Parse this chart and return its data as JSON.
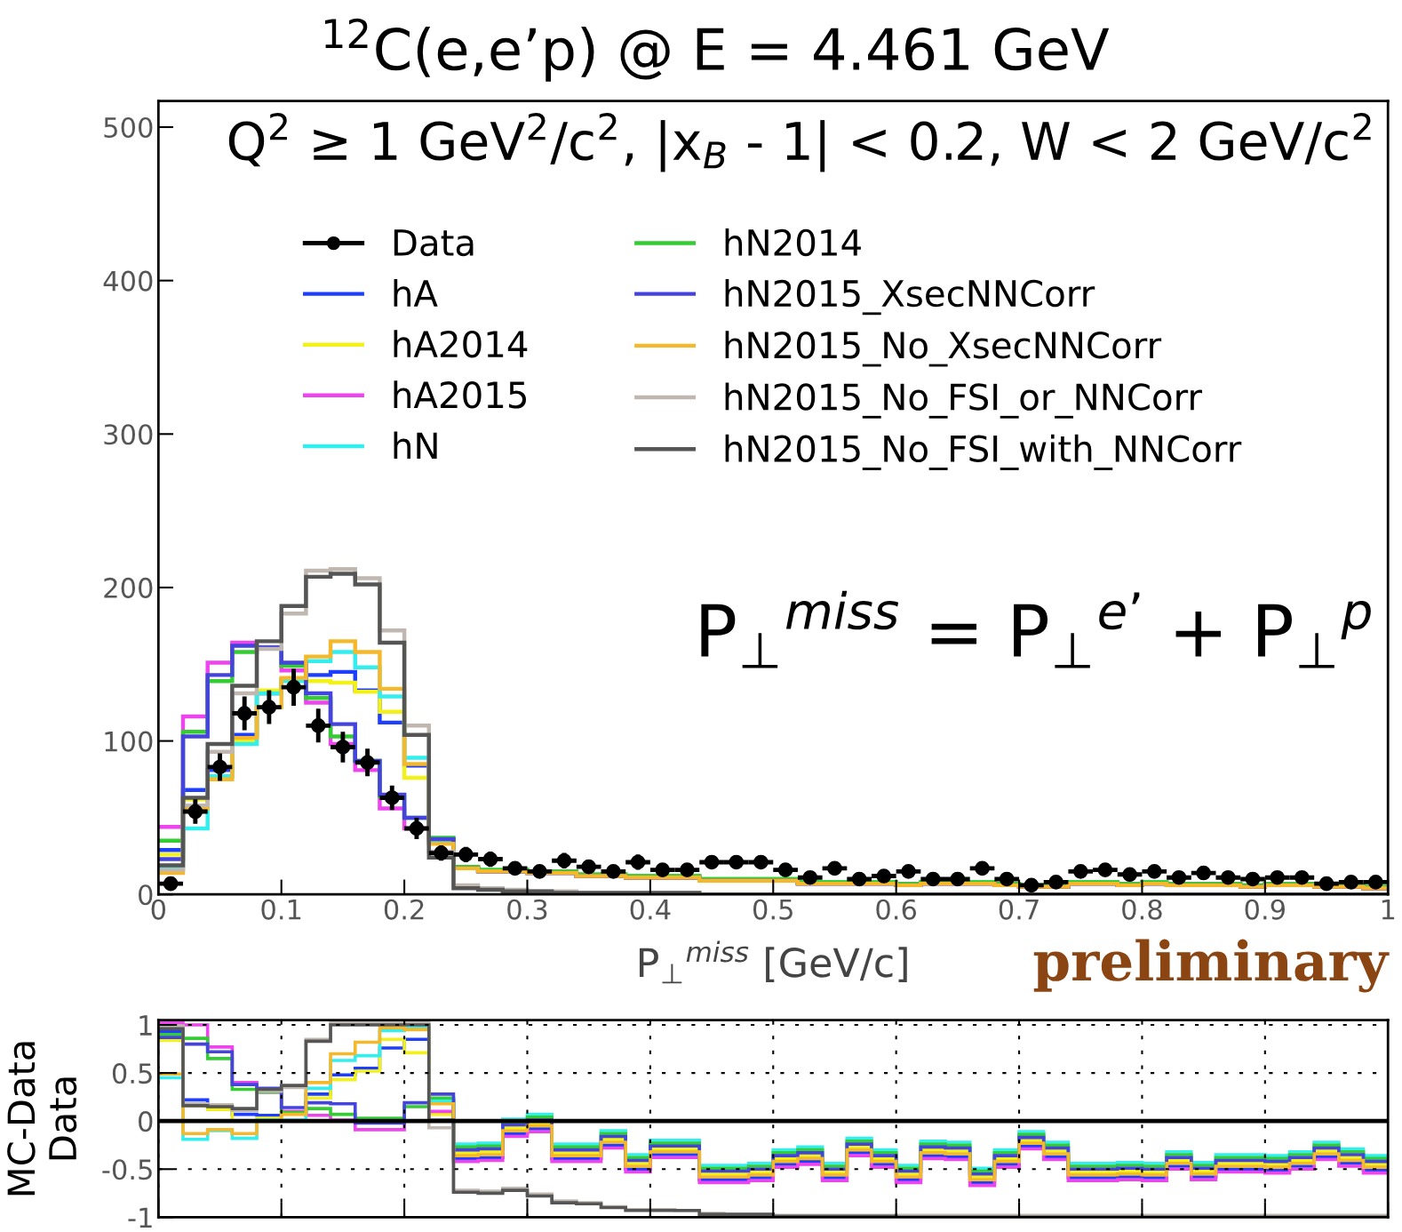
{
  "chart_data": [
    {
      "type": "histogram",
      "title": "$^{12}$C(e,e’p) @ E = 4.461 GeV",
      "subtitle": "Q$^{2}$ ≥ 1 GeV$^{2}$/c$^{2}$, |x$_{B}$ - 1| < 0.2, W < 2 GeV/c$^{2}$",
      "xlabel": "P$_{⊥}$$^{miss}$ [GeV/c]",
      "annotations": [
        "P$_{⊥}$$^{miss}$ = P$_{⊥}$$^{e’}$ + P$_{⊥}$$^{p}$",
        "preliminary"
      ],
      "bins": [
        0,
        0.02,
        0.04,
        0.06,
        0.08,
        0.1,
        0.12,
        0.14,
        0.16,
        0.18,
        0.2,
        0.22,
        0.24,
        0.26,
        0.28,
        0.3,
        0.32,
        0.34,
        0.36,
        0.38,
        0.4,
        0.42,
        0.44,
        0.46,
        0.48,
        0.5,
        0.52,
        0.54,
        0.56,
        0.58,
        0.6,
        0.62,
        0.64,
        0.66,
        0.68,
        0.7,
        0.72,
        0.74,
        0.76,
        0.78,
        0.8,
        0.82,
        0.84,
        0.86,
        0.88,
        0.9,
        0.92,
        0.94,
        0.96,
        0.98,
        1
      ],
      "xlim": [
        0,
        1
      ],
      "xticks": [
        0,
        0.1,
        0.2,
        0.3,
        0.4,
        0.5,
        0.6,
        0.7,
        0.8,
        0.9,
        1
      ],
      "ylim": [
        0,
        517
      ],
      "yticks": [
        0,
        100,
        200,
        300,
        400,
        500
      ],
      "legend": "top",
      "series": [
        {
          "name": "Data",
          "type": "scatter",
          "color": "#000000",
          "marker": "circle",
          "x": [
            0.01,
            0.03,
            0.05,
            0.07,
            0.09,
            0.11,
            0.13,
            0.15,
            0.17,
            0.19,
            0.21,
            0.23,
            0.25,
            0.27,
            0.29,
            0.31,
            0.33,
            0.35,
            0.37,
            0.39,
            0.41,
            0.43,
            0.45,
            0.47,
            0.49,
            0.51,
            0.53,
            0.55,
            0.57,
            0.59,
            0.61,
            0.63,
            0.65,
            0.67,
            0.69,
            0.71,
            0.73,
            0.75,
            0.77,
            0.79,
            0.81,
            0.83,
            0.85,
            0.87,
            0.89,
            0.91,
            0.93,
            0.95,
            0.97,
            0.99
          ],
          "values": [
            7,
            54,
            83,
            118,
            122,
            135,
            110,
            96,
            86,
            63,
            43,
            27,
            26,
            23,
            17,
            15,
            22,
            18,
            15,
            21,
            16,
            16,
            21,
            21,
            21,
            16,
            11,
            17,
            10,
            12,
            15,
            10,
            10,
            17,
            10,
            6,
            8,
            15,
            16,
            13,
            15,
            11,
            14,
            11,
            10,
            11,
            11,
            7,
            8,
            8
          ],
          "errors": [
            3,
            8,
            9,
            11,
            11,
            12,
            11,
            10,
            9,
            8,
            7,
            5,
            5,
            5,
            4,
            4,
            5,
            4,
            4,
            5,
            4,
            4,
            4,
            4,
            4,
            4,
            4,
            4,
            4,
            4,
            4,
            4,
            4,
            4,
            4,
            4,
            4,
            4,
            4,
            4,
            4,
            4,
            4,
            4,
            4,
            4,
            4,
            4,
            4,
            4
          ],
          "xerrors": [
            0.01,
            0.01,
            0.01,
            0.01,
            0.01,
            0.01,
            0.01,
            0.01,
            0.01,
            0.01,
            0.01,
            0.01,
            0.01,
            0.01,
            0.01,
            0.01,
            0.01,
            0.01,
            0.01,
            0.01,
            0.01,
            0.01,
            0.01,
            0.01,
            0.01,
            0.01,
            0.01,
            0.01,
            0.01,
            0.01,
            0.01,
            0.01,
            0.01,
            0.01,
            0.01,
            0.01,
            0.01,
            0.01,
            0.01,
            0.01,
            0.01,
            0.01,
            0.01,
            0.01,
            0.01,
            0.01,
            0.01,
            0.01,
            0.01,
            0.01
          ]
        },
        {
          "name": "hA",
          "color": "#1f3fff",
          "values": [
            29,
            68,
            81,
            104,
            131,
            140,
            143,
            145,
            133,
            112,
            84,
            34,
            17,
            15,
            15,
            14,
            14,
            12,
            12,
            11,
            11,
            11,
            9,
            9,
            9,
            9,
            7,
            7,
            7,
            7,
            6,
            7,
            7,
            7,
            6,
            5,
            5,
            7,
            7,
            6,
            7,
            6,
            6,
            6,
            5,
            6,
            6,
            5,
            5,
            4
          ]
        },
        {
          "name": "hA2014",
          "color": "#f2f21a",
          "values": [
            26,
            62,
            77,
            100,
            133,
            140,
            139,
            138,
            132,
            119,
            76,
            34,
            18,
            16,
            16,
            15,
            15,
            13,
            13,
            12,
            12,
            12,
            10,
            10,
            10,
            10,
            8,
            8,
            8,
            8,
            7,
            8,
            8,
            8,
            7,
            6,
            6,
            8,
            8,
            7,
            8,
            7,
            7,
            7,
            6,
            7,
            7,
            6,
            6,
            5
          ]
        },
        {
          "name": "hA2015",
          "color": "#ee44ee",
          "values": [
            44,
            116,
            151,
            164,
            161,
            146,
            125,
            98,
            81,
            56,
            43,
            35,
            17,
            15,
            15,
            14,
            14,
            12,
            12,
            11,
            11,
            11,
            9,
            9,
            9,
            9,
            7,
            7,
            7,
            7,
            6,
            7,
            7,
            7,
            6,
            5,
            5,
            7,
            7,
            6,
            7,
            6,
            6,
            6,
            5,
            6,
            6,
            5,
            5,
            4
          ]
        },
        {
          "name": "hN",
          "color": "#33eeee",
          "values": [
            17,
            43,
            77,
            98,
            131,
            139,
            152,
            158,
            148,
            129,
            89,
            35,
            18,
            16,
            16,
            15,
            15,
            13,
            13,
            12,
            12,
            12,
            10,
            10,
            10,
            10,
            8,
            8,
            8,
            8,
            7,
            8,
            8,
            8,
            7,
            6,
            6,
            8,
            8,
            7,
            8,
            7,
            7,
            7,
            6,
            7,
            7,
            6,
            6,
            5
          ]
        },
        {
          "name": "hN2014",
          "color": "#33cc33",
          "values": [
            35,
            106,
            139,
            158,
            161,
            149,
            128,
            103,
            87,
            64,
            50,
            37,
            18,
            16,
            16,
            15,
            15,
            13,
            13,
            12,
            12,
            12,
            10,
            10,
            10,
            10,
            8,
            8,
            8,
            8,
            7,
            8,
            8,
            8,
            7,
            6,
            6,
            8,
            8,
            7,
            8,
            7,
            7,
            7,
            6,
            7,
            7,
            6,
            6,
            5
          ]
        },
        {
          "name": "hN2015_XsecNNCorr",
          "color": "#4444dd",
          "values": [
            23,
            103,
            143,
            162,
            161,
            151,
            131,
            111,
            87,
            65,
            50,
            36,
            17,
            15,
            15,
            14,
            14,
            12,
            12,
            11,
            11,
            11,
            9,
            9,
            9,
            9,
            7,
            7,
            7,
            7,
            6,
            7,
            7,
            7,
            6,
            5,
            5,
            7,
            7,
            6,
            7,
            6,
            6,
            6,
            5,
            6,
            6,
            5,
            5,
            4
          ]
        },
        {
          "name": "hN2015_No_XsecNNCorr",
          "color": "#f5b82a",
          "values": [
            14,
            56,
            75,
            102,
            122,
            141,
            155,
            165,
            158,
            134,
            85,
            33,
            17,
            15,
            15,
            14,
            14,
            12,
            12,
            11,
            11,
            11,
            9,
            9,
            9,
            9,
            7,
            7,
            7,
            7,
            6,
            7,
            7,
            7,
            6,
            5,
            5,
            7,
            7,
            6,
            7,
            6,
            6,
            6,
            5,
            6,
            6,
            5,
            5,
            4
          ]
        },
        {
          "name": "hN2015_No_FSI_or_NNCorr",
          "color": "#c0b8b0",
          "values": [
            16,
            58,
            93,
            131,
            160,
            183,
            211,
            212,
            206,
            172,
            110,
            28,
            6,
            4,
            3,
            2,
            2,
            1,
            1,
            1,
            1,
            1,
            0,
            0,
            0,
            0,
            0,
            0,
            0,
            0,
            0,
            0,
            0,
            0,
            0,
            0,
            0,
            0,
            0,
            0,
            0,
            0,
            0,
            0,
            0,
            0,
            0,
            0,
            0,
            0
          ]
        },
        {
          "name": "hN2015_No_FSI_with_NNCorr",
          "color": "#555555",
          "values": [
            19,
            63,
            98,
            136,
            165,
            188,
            207,
            209,
            202,
            164,
            104,
            24,
            4,
            3,
            2,
            2,
            1,
            1,
            1,
            1,
            1,
            1,
            0,
            0,
            0,
            0,
            0,
            0,
            0,
            0,
            0,
            0,
            0,
            0,
            0,
            0,
            0,
            0,
            0,
            0,
            0,
            0,
            0,
            0,
            0,
            0,
            0,
            0,
            0,
            0
          ]
        }
      ]
    },
    {
      "type": "histogram",
      "ylabel": "MC-Data\nData",
      "tick_labels": "y",
      "grid": true,
      "bins": [
        0,
        0.02,
        0.04,
        0.06,
        0.08,
        0.1,
        0.12,
        0.14,
        0.16,
        0.18,
        0.2,
        0.22,
        0.24,
        0.26,
        0.28,
        0.3,
        0.32,
        0.34,
        0.36,
        0.38,
        0.4,
        0.42,
        0.44,
        0.46,
        0.48,
        0.5,
        0.52,
        0.54,
        0.56,
        0.58,
        0.6,
        0.62,
        0.64,
        0.66,
        0.68,
        0.7,
        0.72,
        0.74,
        0.76,
        0.78,
        0.8,
        0.82,
        0.84,
        0.86,
        0.88,
        0.9,
        0.92,
        0.94,
        0.96,
        0.98,
        1
      ],
      "xlim": [
        0,
        1
      ],
      "xticks": [
        0,
        0.1,
        0.2,
        0.3,
        0.4,
        0.5,
        0.6,
        0.7,
        0.8,
        0.9,
        1
      ],
      "ylim": [
        -1,
        1.05
      ],
      "yticks": [
        -1,
        -0.5,
        0,
        0.5,
        1
      ],
      "ref_lines": [
        {
          "axis": "y",
          "value": 0,
          "color": "#000000"
        }
      ],
      "series": [
        {
          "color": "#1f3fff",
          "values": [
            0.93,
            0.22,
            0.15,
            0.07,
            0.06,
            0.09,
            0.28,
            0.48,
            0.55,
            0.76,
            0.85,
            0.22,
            -0.39,
            -0.38,
            -0.13,
            -0.08,
            -0.39,
            -0.39,
            -0.25,
            -0.5,
            -0.35,
            -0.35,
            -0.61,
            -0.61,
            -0.59,
            -0.45,
            -0.42,
            -0.59,
            -0.33,
            -0.45,
            -0.61,
            -0.36,
            -0.37,
            -0.64,
            -0.45,
            -0.26,
            -0.37,
            -0.59,
            -0.59,
            -0.58,
            -0.59,
            -0.47,
            -0.58,
            -0.5,
            -0.5,
            -0.51,
            -0.47,
            -0.37,
            -0.44,
            -0.51
          ]
        },
        {
          "color": "#f2f21a",
          "values": [
            0.84,
            0.16,
            0.12,
            0.0,
            0.03,
            0.09,
            0.24,
            0.43,
            0.52,
            0.85,
            0.71,
            0.07,
            -0.33,
            -0.32,
            -0.07,
            -0.02,
            -0.33,
            -0.33,
            -0.19,
            -0.44,
            -0.29,
            -0.29,
            -0.55,
            -0.55,
            -0.53,
            -0.39,
            -0.36,
            -0.53,
            -0.27,
            -0.39,
            -0.55,
            -0.3,
            -0.31,
            -0.58,
            -0.39,
            -0.2,
            -0.31,
            -0.53,
            -0.53,
            -0.52,
            -0.53,
            -0.41,
            -0.52,
            -0.44,
            -0.44,
            -0.45,
            -0.41,
            -0.31,
            -0.38,
            -0.45
          ]
        },
        {
          "color": "#ee44ee",
          "values": [
            1.02,
            1.0,
            0.77,
            0.4,
            0.3,
            0.1,
            0.06,
            0.01,
            -0.09,
            -0.09,
            0.0,
            0.1,
            -0.42,
            -0.41,
            -0.16,
            -0.11,
            -0.42,
            -0.42,
            -0.28,
            -0.53,
            -0.38,
            -0.38,
            -0.64,
            -0.64,
            -0.62,
            -0.48,
            -0.45,
            -0.62,
            -0.36,
            -0.48,
            -0.64,
            -0.39,
            -0.4,
            -0.67,
            -0.48,
            -0.29,
            -0.4,
            -0.62,
            -0.62,
            -0.61,
            -0.62,
            -0.5,
            -0.61,
            -0.53,
            -0.53,
            -0.54,
            -0.5,
            -0.4,
            -0.47,
            -0.54
          ]
        },
        {
          "color": "#33eeee",
          "values": [
            0.45,
            -0.19,
            -0.1,
            -0.18,
            0.01,
            0.01,
            0.34,
            0.63,
            0.68,
            0.94,
            0.97,
            0.21,
            -0.24,
            -0.23,
            0.02,
            0.07,
            -0.24,
            -0.24,
            -0.1,
            -0.35,
            -0.2,
            -0.2,
            -0.46,
            -0.46,
            -0.44,
            -0.3,
            -0.27,
            -0.44,
            -0.18,
            -0.3,
            -0.46,
            -0.21,
            -0.22,
            -0.49,
            -0.3,
            -0.11,
            -0.22,
            -0.44,
            -0.44,
            -0.43,
            -0.44,
            -0.32,
            -0.43,
            -0.35,
            -0.35,
            -0.36,
            -0.32,
            -0.22,
            -0.29,
            -0.36
          ]
        },
        {
          "color": "#33cc33",
          "values": [
            0.9,
            0.86,
            0.65,
            0.33,
            0.3,
            0.09,
            0.13,
            0.07,
            0.03,
            0.03,
            0.15,
            0.24,
            -0.27,
            -0.26,
            -0.01,
            0.04,
            -0.27,
            -0.27,
            -0.13,
            -0.38,
            -0.23,
            -0.23,
            -0.49,
            -0.49,
            -0.47,
            -0.33,
            -0.3,
            -0.47,
            -0.21,
            -0.33,
            -0.49,
            -0.24,
            -0.25,
            -0.52,
            -0.33,
            -0.14,
            -0.25,
            -0.47,
            -0.47,
            -0.46,
            -0.47,
            -0.35,
            -0.46,
            -0.38,
            -0.38,
            -0.39,
            -0.35,
            -0.25,
            -0.32,
            -0.39
          ]
        },
        {
          "color": "#4444dd",
          "values": [
            0.87,
            0.8,
            0.72,
            0.38,
            0.34,
            0.14,
            0.19,
            0.18,
            -0.02,
            -0.02,
            0.19,
            0.28,
            -0.3,
            -0.29,
            -0.04,
            0.01,
            -0.3,
            -0.3,
            -0.16,
            -0.41,
            -0.26,
            -0.26,
            -0.52,
            -0.52,
            -0.5,
            -0.36,
            -0.33,
            -0.5,
            -0.24,
            -0.36,
            -0.52,
            -0.27,
            -0.28,
            -0.55,
            -0.36,
            -0.17,
            -0.28,
            -0.5,
            -0.5,
            -0.49,
            -0.5,
            -0.38,
            -0.49,
            -0.41,
            -0.41,
            -0.42,
            -0.38,
            -0.28,
            -0.35,
            -0.42
          ]
        },
        {
          "color": "#f5b82a",
          "values": [
            0.49,
            -0.13,
            -0.09,
            -0.13,
            0.0,
            0.07,
            0.4,
            0.7,
            0.82,
            0.97,
            0.95,
            0.18,
            -0.36,
            -0.35,
            -0.1,
            -0.05,
            -0.36,
            -0.36,
            -0.22,
            -0.47,
            -0.32,
            -0.32,
            -0.58,
            -0.58,
            -0.56,
            -0.42,
            -0.39,
            -0.56,
            -0.3,
            -0.42,
            -0.58,
            -0.33,
            -0.34,
            -0.61,
            -0.42,
            -0.23,
            -0.34,
            -0.56,
            -0.56,
            -0.55,
            -0.56,
            -0.44,
            -0.55,
            -0.47,
            -0.47,
            -0.48,
            -0.44,
            -0.34,
            -0.41,
            -0.48
          ]
        },
        {
          "color": "#c0b8b0",
          "values": [
            0.99,
            0.18,
            0.17,
            0.11,
            0.31,
            0.35,
            0.85,
            1.02,
            1.02,
            1.02,
            1.02,
            -0.07,
            -0.72,
            -0.73,
            -0.7,
            -0.76,
            -0.83,
            -0.85,
            -0.89,
            -0.92,
            -0.92,
            -0.93,
            -0.96,
            -0.97,
            -0.97,
            -0.98,
            -0.98,
            -0.98,
            -0.98,
            -0.98,
            -0.98,
            -0.98,
            -0.98,
            -0.98,
            -0.98,
            -0.98,
            -0.98,
            -0.98,
            -0.98,
            -0.98,
            -0.98,
            -0.98,
            -0.98,
            -0.98,
            -0.98,
            -0.98,
            -0.98,
            -0.98,
            -0.98,
            -0.98
          ]
        },
        {
          "color": "#555555",
          "values": [
            0.96,
            0.16,
            0.15,
            0.13,
            0.33,
            0.37,
            0.83,
            1.0,
            1.0,
            1.0,
            1.0,
            0.01,
            -0.74,
            -0.75,
            -0.72,
            -0.78,
            -0.85,
            -0.86,
            -0.9,
            -0.93,
            -0.93,
            -0.93,
            -0.97,
            -0.97,
            -0.97,
            -0.99,
            -0.99,
            -0.99,
            -0.99,
            -0.99,
            -1,
            -1,
            -1,
            -1,
            -1,
            -1,
            -1,
            -1,
            -1,
            -1,
            -1,
            -1,
            -1,
            -1,
            -1,
            -1,
            -1,
            -1,
            -1,
            -1
          ]
        }
      ]
    }
  ]
}
